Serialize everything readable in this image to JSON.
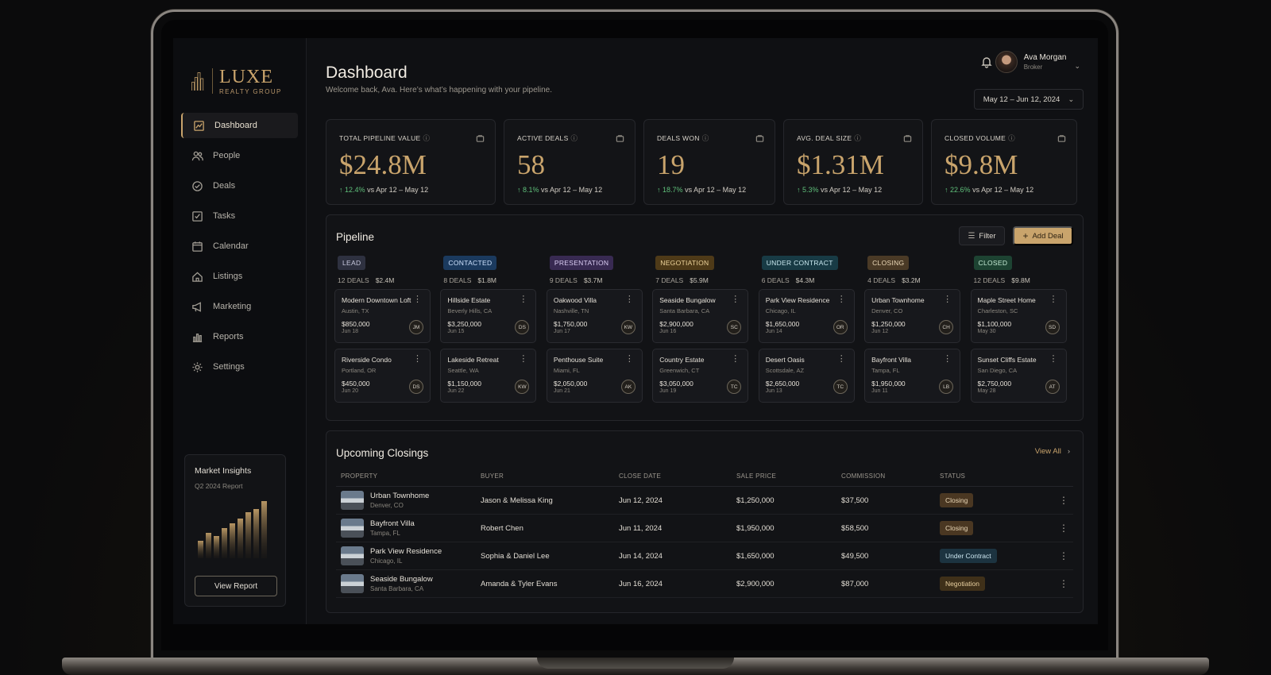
{
  "brand": {
    "name": "LUXE",
    "tagline": "REALTY GROUP"
  },
  "sidebar": {
    "items": [
      {
        "label": "Dashboard",
        "icon": "dashboard-icon",
        "active": true
      },
      {
        "label": "People",
        "icon": "people-icon"
      },
      {
        "label": "Deals",
        "icon": "deals-icon"
      },
      {
        "label": "Tasks",
        "icon": "tasks-icon"
      },
      {
        "label": "Calendar",
        "icon": "calendar-icon"
      },
      {
        "label": "Listings",
        "icon": "home-icon"
      },
      {
        "label": "Marketing",
        "icon": "megaphone-icon"
      },
      {
        "label": "Reports",
        "icon": "reports-icon"
      },
      {
        "label": "Settings",
        "icon": "gear-icon"
      }
    ],
    "insights": {
      "title": "Market Insights",
      "subtitle": "Q2 2024 Report",
      "button": "View Report"
    }
  },
  "header": {
    "title": "Dashboard",
    "subtitle": "Welcome back, Ava. Here’s what’s happening with your pipeline.",
    "user": {
      "name": "Ava Morgan",
      "role": "Broker"
    },
    "date_range": "May 12 – Jun 12, 2024"
  },
  "kpis": [
    {
      "label": "TOTAL PIPELINE VALUE",
      "value": "$24.8M",
      "delta": "12.4%",
      "compare": "vs Apr 12 – May 12"
    },
    {
      "label": "ACTIVE DEALS",
      "value": "58",
      "delta": "8.1%",
      "compare": "vs Apr 12 – May 12"
    },
    {
      "label": "DEALS WON",
      "value": "19",
      "delta": "18.7%",
      "compare": "vs Apr 12 – May 12"
    },
    {
      "label": "AVG. DEAL SIZE",
      "value": "$1.31M",
      "delta": "5.3%",
      "compare": "vs Apr 12 – May 12"
    },
    {
      "label": "CLOSED VOLUME",
      "value": "$9.8M",
      "delta": "22.6%",
      "compare": "vs Apr 12 – May 12"
    }
  ],
  "pipeline": {
    "title": "Pipeline",
    "filter_label": "Filter",
    "add_label": "Add Deal",
    "stages": [
      {
        "name": "LEAD",
        "deals": "12 DEALS",
        "amount": "$2.4M",
        "bg": "#2e3140",
        "fg": "#c9cbe0",
        "cards": [
          {
            "title": "Modern Downtown Loft",
            "loc": "Austin, TX",
            "price": "$850,000",
            "date": "Jun 18",
            "initials": "JM"
          },
          {
            "title": "Riverside Condo",
            "loc": "Portland, OR",
            "price": "$450,000",
            "date": "Jun 20",
            "initials": "DS"
          }
        ]
      },
      {
        "name": "CONTACTED",
        "deals": "8 DEALS",
        "amount": "$1.8M",
        "bg": "#1b3a5e",
        "fg": "#cfe3ff",
        "cards": [
          {
            "title": "Hillside Estate",
            "loc": "Beverly Hills, CA",
            "price": "$3,250,000",
            "date": "Jun 15",
            "initials": "DS"
          },
          {
            "title": "Lakeside Retreat",
            "loc": "Seattle, WA",
            "price": "$1,150,000",
            "date": "Jun 22",
            "initials": "KW"
          }
        ]
      },
      {
        "name": "PRESENTATION",
        "deals": "9 DEALS",
        "amount": "$3.7M",
        "bg": "#382a52",
        "fg": "#dccff5",
        "cards": [
          {
            "title": "Oakwood Villa",
            "loc": "Nashville, TN",
            "price": "$1,750,000",
            "date": "Jun 17",
            "initials": "KW"
          },
          {
            "title": "Penthouse Suite",
            "loc": "Miami, FL",
            "price": "$2,050,000",
            "date": "Jun 21",
            "initials": "AK"
          }
        ]
      },
      {
        "name": "NEGOTIATION",
        "deals": "7 DEALS",
        "amount": "$5.9M",
        "bg": "#4e3a18",
        "fg": "#efd59c",
        "cards": [
          {
            "title": "Seaside Bungalow",
            "loc": "Santa Barbara, CA",
            "price": "$2,900,000",
            "date": "Jun 16",
            "initials": "SC"
          },
          {
            "title": "Country Estate",
            "loc": "Greenwich, CT",
            "price": "$3,050,000",
            "date": "Jun 19",
            "initials": "TC"
          }
        ]
      },
      {
        "name": "UNDER CONTRACT",
        "deals": "6 DEALS",
        "amount": "$4.3M",
        "bg": "#183b45",
        "fg": "#c9e8ef",
        "cards": [
          {
            "title": "Park View Residence",
            "loc": "Chicago, IL",
            "price": "$1,650,000",
            "date": "Jun 14",
            "initials": "OR"
          },
          {
            "title": "Desert Oasis",
            "loc": "Scottsdale, AZ",
            "price": "$2,650,000",
            "date": "Jun 13",
            "initials": "TC"
          }
        ]
      },
      {
        "name": "CLOSING",
        "deals": "4 DEALS",
        "amount": "$3.2M",
        "bg": "#4a3a26",
        "fg": "#ecd9b8",
        "cards": [
          {
            "title": "Urban Townhome",
            "loc": "Denver, CO",
            "price": "$1,250,000",
            "date": "Jun 12",
            "initials": "CH"
          },
          {
            "title": "Bayfront Villa",
            "loc": "Tampa, FL",
            "price": "$1,950,000",
            "date": "Jun 11",
            "initials": "LB"
          }
        ]
      },
      {
        "name": "CLOSED",
        "deals": "12 DEALS",
        "amount": "$9.8M",
        "bg": "#1d4332",
        "fg": "#c6ecd6",
        "cards": [
          {
            "title": "Maple Street Home",
            "loc": "Charleston, SC",
            "price": "$1,100,000",
            "date": "May 30",
            "initials": "SD"
          },
          {
            "title": "Sunset Cliffs Estate",
            "loc": "San Diego, CA",
            "price": "$2,750,000",
            "date": "May 28",
            "initials": "AT"
          }
        ]
      }
    ]
  },
  "closings": {
    "title": "Upcoming Closings",
    "view_all": "View All",
    "columns": [
      "PROPERTY",
      "BUYER",
      "CLOSE DATE",
      "SALE PRICE",
      "COMMISSION",
      "STATUS"
    ],
    "rows": [
      {
        "property": "Urban Townhome",
        "loc": "Denver, CO",
        "buyer": "Jason & Melissa King",
        "date": "Jun 12, 2024",
        "price": "$1,250,000",
        "commission": "$37,500",
        "status": "Closing",
        "status_class": "closing"
      },
      {
        "property": "Bayfront Villa",
        "loc": "Tampa, FL",
        "buyer": "Robert Chen",
        "date": "Jun 11, 2024",
        "price": "$1,950,000",
        "commission": "$58,500",
        "status": "Closing",
        "status_class": "closing"
      },
      {
        "property": "Park View Residence",
        "loc": "Chicago, IL",
        "buyer": "Sophia & Daniel Lee",
        "date": "Jun 14, 2024",
        "price": "$1,650,000",
        "commission": "$49,500",
        "status": "Under Contract",
        "status_class": "contract"
      },
      {
        "property": "Seaside Bungalow",
        "loc": "Santa Barbara, CA",
        "buyer": "Amanda & Tyler Evans",
        "date": "Jun 16, 2024",
        "price": "$2,900,000",
        "commission": "$87,000",
        "status": "Negotiation",
        "status_class": "negotiation"
      }
    ]
  }
}
